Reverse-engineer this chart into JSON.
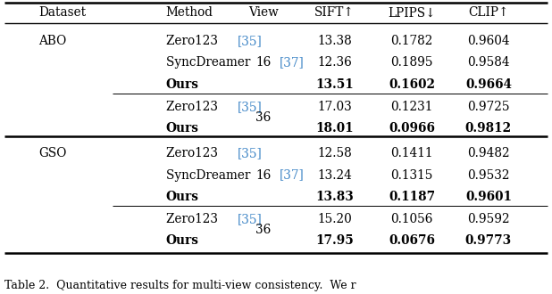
{
  "title": "Table 2.  Quantitative results for multi-view consistency.  We r",
  "col_headers": [
    "Dataset",
    "Method",
    "View",
    "SIFT↑",
    "LPIPS↓",
    "CLIP↑"
  ],
  "rows": [
    {
      "dataset": "ABO",
      "method": "Zero123 ",
      "ref": "[35]",
      "view": "",
      "view_span": "",
      "sift": "13.38",
      "lpips": "0.1782",
      "clip": "0.9604",
      "bold": false,
      "subgroup_sep": false,
      "major_sep": false
    },
    {
      "dataset": "",
      "method": "SyncDreamer ",
      "ref": "[37]",
      "view": "16",
      "view_span": "16",
      "sift": "12.36",
      "lpips": "0.1895",
      "clip": "0.9584",
      "bold": false,
      "subgroup_sep": false,
      "major_sep": false
    },
    {
      "dataset": "",
      "method": "Ours",
      "ref": "",
      "view": "",
      "view_span": "",
      "sift": "13.51",
      "lpips": "0.1602",
      "clip": "0.9664",
      "bold": true,
      "subgroup_sep": false,
      "major_sep": false
    },
    {
      "dataset": "",
      "method": "Zero123 ",
      "ref": "[35]",
      "view": "",
      "view_span": "36",
      "sift": "17.03",
      "lpips": "0.1231",
      "clip": "0.9725",
      "bold": false,
      "subgroup_sep": true,
      "major_sep": false
    },
    {
      "dataset": "",
      "method": "Ours",
      "ref": "",
      "view": "",
      "view_span": "",
      "sift": "18.01",
      "lpips": "0.0966",
      "clip": "0.9812",
      "bold": true,
      "subgroup_sep": false,
      "major_sep": false
    },
    {
      "dataset": "GSO",
      "method": "Zero123 ",
      "ref": "[35]",
      "view": "",
      "view_span": "",
      "sift": "12.58",
      "lpips": "0.1411",
      "clip": "0.9482",
      "bold": false,
      "subgroup_sep": false,
      "major_sep": true
    },
    {
      "dataset": "",
      "method": "SyncDreamer ",
      "ref": "[37]",
      "view": "16",
      "view_span": "16",
      "sift": "13.24",
      "lpips": "0.1315",
      "clip": "0.9532",
      "bold": false,
      "subgroup_sep": false,
      "major_sep": false
    },
    {
      "dataset": "",
      "method": "Ours",
      "ref": "",
      "view": "",
      "view_span": "",
      "sift": "13.83",
      "lpips": "0.1187",
      "clip": "0.9601",
      "bold": true,
      "subgroup_sep": false,
      "major_sep": false
    },
    {
      "dataset": "",
      "method": "Zero123 ",
      "ref": "[35]",
      "view": "",
      "view_span": "36",
      "sift": "15.20",
      "lpips": "0.1056",
      "clip": "0.9592",
      "bold": false,
      "subgroup_sep": true,
      "major_sep": false
    },
    {
      "dataset": "",
      "method": "Ours",
      "ref": "",
      "view": "",
      "view_span": "",
      "sift": "17.95",
      "lpips": "0.0676",
      "clip": "0.9773",
      "bold": true,
      "subgroup_sep": false,
      "major_sep": false
    }
  ],
  "ref_color": "#4489C8",
  "background": "#ffffff",
  "font_size": 9.8,
  "header_font_size": 9.8
}
